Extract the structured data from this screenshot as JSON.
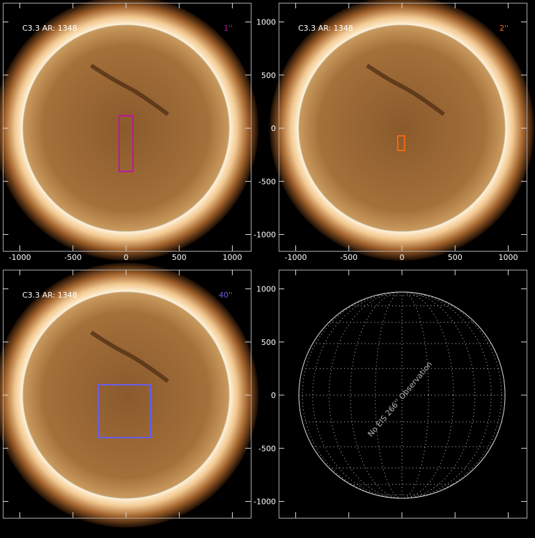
{
  "panels": [
    {
      "label": "C3.3 AR: 1348",
      "fov": "1''",
      "fov_color": "#c0169c",
      "box": {
        "x": [
          -65,
          65
        ],
        "y": [
          118,
          -407
        ]
      }
    },
    {
      "label": "C3.3 AR: 1348",
      "fov": "2''",
      "fov_color": "#f06a10",
      "box": {
        "x": [
          -40,
          25
        ],
        "y": [
          -72,
          -210
        ]
      }
    },
    {
      "label": "C3.3 AR: 1348",
      "fov": "40''",
      "fov_color": "#6a5cf0",
      "box": {
        "x": [
          -262,
          230
        ],
        "y": [
          98,
          -400
        ]
      }
    },
    {
      "message": "No EIS 266'' Observation"
    }
  ],
  "axes": {
    "xticks": [
      -1000,
      -500,
      0,
      500,
      1000
    ],
    "yticks": [
      1000,
      500,
      0,
      -500,
      -1000
    ]
  }
}
